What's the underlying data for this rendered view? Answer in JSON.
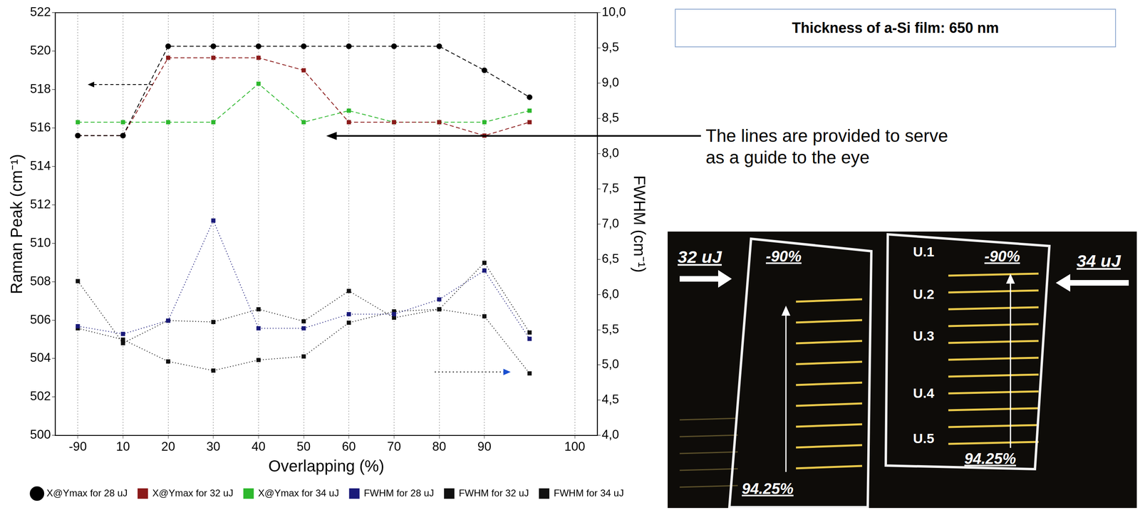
{
  "chart_data": {
    "type": "line",
    "x_title": "Overlapping (%)",
    "y_title": "Raman Peak (cm⁻¹)",
    "y2_title": "FWHM (cm⁻¹)",
    "categories": [
      "-90",
      "10",
      "20",
      "30",
      "40",
      "50",
      "60",
      "70",
      "80",
      "90",
      null,
      "100"
    ],
    "ylim": [
      500,
      522
    ],
    "yticks": [
      500,
      502,
      504,
      506,
      508,
      510,
      512,
      514,
      516,
      518,
      520,
      522
    ],
    "y2lim": [
      4,
      10
    ],
    "y2ticks": [
      {
        "value": 4,
        "label": "4,0"
      },
      {
        "value": 4.5,
        "label": "4,5"
      },
      {
        "value": 5,
        "label": "5,0"
      },
      {
        "value": 5.5,
        "label": "5,5"
      },
      {
        "value": 6,
        "label": "6,0"
      },
      {
        "value": 6.5,
        "label": "6,5"
      },
      {
        "value": 7,
        "label": "7,0"
      },
      {
        "value": 7.5,
        "label": "7,5"
      },
      {
        "value": 8,
        "label": "8,0"
      },
      {
        "value": 8.5,
        "label": "8,5"
      },
      {
        "value": 9,
        "label": "9,0"
      },
      {
        "value": 9.5,
        "label": "9,5"
      },
      {
        "value": 10,
        "label": "10,0"
      }
    ],
    "grid": "x",
    "legend": "bottom",
    "series": [
      {
        "name": "X@Ymax for 28 uJ",
        "color": "#000000",
        "marker": "circle",
        "line_style": "dashed",
        "values": [
          515.6,
          515.6,
          520.25,
          520.25,
          520.25,
          520.25,
          520.25,
          520.25,
          520.25,
          519.0,
          517.6,
          null
        ]
      },
      {
        "name": "X@Ymax for 32 uJ",
        "color": "#8b1a1a",
        "marker": "square",
        "line_style": "dashed",
        "values": [
          515.6,
          515.6,
          519.65,
          519.65,
          519.65,
          519.0,
          516.3,
          516.3,
          516.3,
          515.6,
          516.3,
          null
        ]
      },
      {
        "name": "X@Ymax for 34 uJ",
        "color": "#2db82d",
        "marker": "square",
        "line_style": "dashed",
        "values": [
          516.3,
          516.3,
          516.3,
          516.3,
          518.3,
          516.3,
          516.9,
          516.3,
          516.3,
          516.3,
          516.9,
          null
        ]
      },
      {
        "name": "FWHM for 28 uJ",
        "color": "#1a1a7a",
        "marker": "square",
        "line_style": "dotted",
        "axis": "y2",
        "values": [
          5.55,
          5.44,
          5.63,
          7.05,
          5.52,
          5.52,
          5.72,
          5.72,
          5.93,
          6.34,
          5.37,
          null
        ]
      },
      {
        "name": "FWHM for 32 uJ",
        "color": "#111111",
        "marker": "square",
        "line_style": "dotted",
        "axis": "y2",
        "values": [
          6.19,
          5.31,
          5.63,
          5.61,
          5.79,
          5.62,
          6.05,
          5.67,
          5.79,
          6.45,
          5.46,
          null
        ]
      },
      {
        "name": "FWHM for 34 uJ",
        "color": "#111111",
        "marker": "square",
        "line_style": "dotted",
        "axis": "y2",
        "values": [
          5.52,
          5.36,
          5.05,
          4.92,
          5.07,
          5.12,
          5.6,
          5.76,
          5.79,
          5.69,
          4.88,
          null
        ]
      }
    ]
  },
  "title_box": "Thickness of a-Si film: 650 nm",
  "note": "The lines are provided to serve as a guide to the eye",
  "photo": {
    "left_panel": {
      "energy": "32 uJ",
      "top": "-90%",
      "bottom": "94.25%"
    },
    "right_panel": {
      "energy": "34 uJ",
      "top": "-90%",
      "bottom": "94.25%",
      "rows": [
        "U.1",
        "U.2",
        "U.3",
        "U.4",
        "U.5"
      ]
    }
  }
}
